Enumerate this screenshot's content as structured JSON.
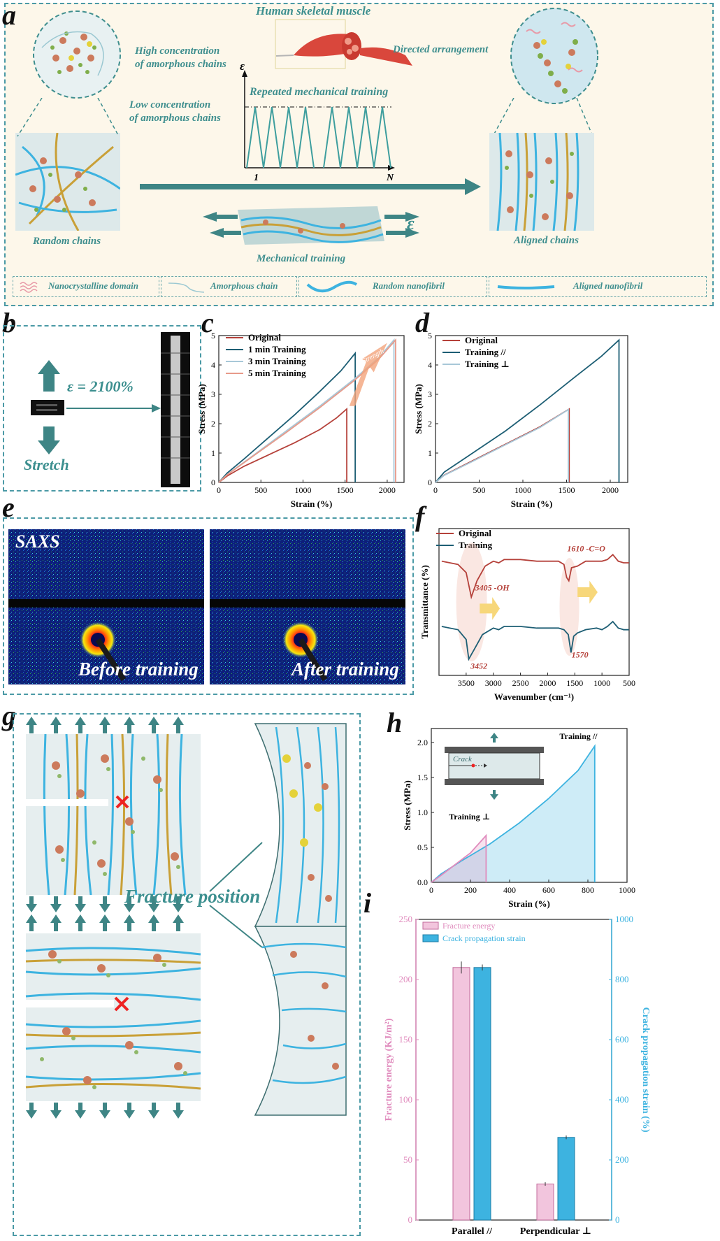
{
  "panel_a": {
    "letter": "a",
    "muscle_title": "Human skeletal muscle",
    "high_conc": [
      "High concentration",
      "of amorphous chains"
    ],
    "low_conc": [
      "Low concentration",
      "of amorphous chains"
    ],
    "directed": "Directed arrangement",
    "repeated": "Repeated mechanical  training",
    "epsilon": "ε",
    "axis_start": "1",
    "axis_end": "N",
    "random_chains": "Random chains",
    "aligned_chains": "Aligned chains",
    "mech_training": "Mechanical training",
    "epsilon_arrow": "ε",
    "legend": [
      "Nanocrystalline domain",
      "Amorphous chain",
      "Random nanofibril",
      "Aligned nanofibril"
    ]
  },
  "panel_b": {
    "letter": "b",
    "strain_label": "ε = 2100%",
    "stretch": "Stretch"
  },
  "panel_c": {
    "letter": "c",
    "strength": "Strength"
  },
  "panel_d": {
    "letter": "d"
  },
  "panel_e": {
    "letter": "e",
    "saxs": "SAXS",
    "before": "Before training",
    "after": "After training"
  },
  "panel_f": {
    "letter": "f",
    "ann_3405": "3405 -OH",
    "ann_1610": "1610 -C=O",
    "ann_3452": "3452",
    "ann_1570": "1570"
  },
  "panel_g": {
    "letter": "g",
    "fracture": "Fracture position"
  },
  "panel_h": {
    "letter": "h",
    "crack": "Crack",
    "train_par": "Training //",
    "train_perp": "Training ⊥"
  },
  "panel_i": {
    "letter": "i"
  },
  "colors": {
    "teal": "#4b9aa6",
    "orig": "#b5413a",
    "train1": "#1d5e74",
    "train3": "#a8c8d8",
    "train5": "#e79a8a",
    "pink": "#e08bbd",
    "cyan": "#3db3e0"
  },
  "chart_data": [
    {
      "id": "c",
      "type": "line",
      "xlabel": "Strain (%)",
      "ylabel": "Stress (MPa)",
      "xlim": [
        0,
        2200
      ],
      "ylim": [
        0,
        5
      ],
      "xticks": [
        0,
        500,
        1000,
        1500,
        2000
      ],
      "yticks": [
        0,
        1,
        2,
        3,
        4,
        5
      ],
      "legend": "top-left",
      "series": [
        {
          "name": "Original",
          "color": "#b5413a",
          "points": [
            [
              0,
              0
            ],
            [
              100,
              0.22
            ],
            [
              300,
              0.55
            ],
            [
              600,
              0.95
            ],
            [
              900,
              1.35
            ],
            [
              1200,
              1.8
            ],
            [
              1400,
              2.2
            ],
            [
              1520,
              2.5
            ],
            [
              1520,
              0
            ]
          ]
        },
        {
          "name": "1 min Training",
          "color": "#1d5e74",
          "points": [
            [
              0,
              0
            ],
            [
              100,
              0.32
            ],
            [
              300,
              0.8
            ],
            [
              600,
              1.55
            ],
            [
              900,
              2.3
            ],
            [
              1200,
              3.1
            ],
            [
              1450,
              3.8
            ],
            [
              1620,
              4.4
            ],
            [
              1620,
              0
            ]
          ]
        },
        {
          "name": "3 min Training",
          "color": "#a8c8d8",
          "points": [
            [
              0,
              0
            ],
            [
              100,
              0.27
            ],
            [
              400,
              0.9
            ],
            [
              800,
              1.75
            ],
            [
              1200,
              2.6
            ],
            [
              1600,
              3.5
            ],
            [
              1900,
              4.25
            ],
            [
              2080,
              4.85
            ],
            [
              2080,
              0
            ]
          ]
        },
        {
          "name": "5 min Training",
          "color": "#e79a8a",
          "points": [
            [
              0,
              0
            ],
            [
              100,
              0.26
            ],
            [
              400,
              0.88
            ],
            [
              800,
              1.7
            ],
            [
              1200,
              2.55
            ],
            [
              1600,
              3.45
            ],
            [
              1900,
              4.2
            ],
            [
              2100,
              4.85
            ],
            [
              2100,
              0
            ]
          ]
        }
      ]
    },
    {
      "id": "d",
      "type": "line",
      "xlabel": "Strain (%)",
      "ylabel": "Stress (MPa)",
      "xlim": [
        0,
        2200
      ],
      "ylim": [
        0,
        5
      ],
      "xticks": [
        0,
        500,
        1000,
        1500,
        2000
      ],
      "yticks": [
        0,
        1,
        2,
        3,
        4,
        5
      ],
      "legend": "top-left",
      "series": [
        {
          "name": "Original",
          "color": "#b5413a",
          "points": [
            [
              0,
              0
            ],
            [
              100,
              0.25
            ],
            [
              400,
              0.7
            ],
            [
              800,
              1.3
            ],
            [
              1200,
              1.9
            ],
            [
              1530,
              2.5
            ],
            [
              1530,
              0
            ]
          ]
        },
        {
          "name": "Training //",
          "color": "#1d5e74",
          "points": [
            [
              0,
              0
            ],
            [
              100,
              0.35
            ],
            [
              400,
              0.95
            ],
            [
              800,
              1.75
            ],
            [
              1200,
              2.65
            ],
            [
              1600,
              3.6
            ],
            [
              1900,
              4.3
            ],
            [
              2100,
              4.85
            ],
            [
              2100,
              0
            ]
          ]
        },
        {
          "name": "Training ⊥",
          "color": "#a8c8d8",
          "points": [
            [
              0,
              0
            ],
            [
              100,
              0.24
            ],
            [
              400,
              0.68
            ],
            [
              800,
              1.28
            ],
            [
              1200,
              1.88
            ],
            [
              1520,
              2.48
            ],
            [
              1520,
              0
            ]
          ]
        }
      ]
    },
    {
      "id": "f",
      "type": "line",
      "xlabel": "Wavenumber (cm⁻¹)",
      "ylabel": "Transmittance (%)",
      "xlim": [
        4000,
        500
      ],
      "reversed_x": true,
      "xticks": [
        3500,
        3000,
        2500,
        2000,
        1500,
        1000,
        500
      ],
      "legend": "top-left",
      "series": [
        {
          "name": "Original",
          "color": "#b5413a",
          "points": [
            [
              3950,
              70
            ],
            [
              3800,
              69
            ],
            [
              3650,
              68
            ],
            [
              3500,
              63
            ],
            [
              3405,
              48
            ],
            [
              3300,
              58
            ],
            [
              3150,
              67
            ],
            [
              3000,
              70
            ],
            [
              2900,
              69
            ],
            [
              2800,
              71
            ],
            [
              2500,
              71
            ],
            [
              2200,
              70
            ],
            [
              2000,
              70
            ],
            [
              1800,
              70
            ],
            [
              1700,
              68
            ],
            [
              1650,
              60
            ],
            [
              1610,
              58
            ],
            [
              1560,
              66
            ],
            [
              1450,
              67
            ],
            [
              1300,
              70
            ],
            [
              1100,
              70
            ],
            [
              1000,
              70
            ],
            [
              900,
              71
            ],
            [
              800,
              74
            ],
            [
              700,
              70
            ],
            [
              600,
              69
            ],
            [
              500,
              69
            ]
          ]
        },
        {
          "name": "Training",
          "color": "#1d5e74",
          "points": [
            [
              3950,
              30
            ],
            [
              3800,
              29
            ],
            [
              3650,
              28
            ],
            [
              3500,
              22
            ],
            [
              3452,
              10
            ],
            [
              3350,
              16
            ],
            [
              3200,
              25
            ],
            [
              3000,
              29
            ],
            [
              2900,
              28
            ],
            [
              2800,
              30
            ],
            [
              2500,
              30
            ],
            [
              2200,
              29
            ],
            [
              2000,
              29
            ],
            [
              1800,
              29
            ],
            [
              1700,
              28
            ],
            [
              1620,
              25
            ],
            [
              1570,
              14
            ],
            [
              1520,
              24
            ],
            [
              1450,
              26
            ],
            [
              1300,
              28
            ],
            [
              1100,
              29
            ],
            [
              1000,
              28
            ],
            [
              900,
              30
            ],
            [
              800,
              33
            ],
            [
              700,
              29
            ],
            [
              600,
              28
            ],
            [
              500,
              28
            ]
          ]
        }
      ]
    },
    {
      "id": "h",
      "type": "area",
      "xlabel": "Strain (%)",
      "ylabel": "Stress (MPa)",
      "xlim": [
        0,
        1000
      ],
      "ylim": [
        0,
        2.2
      ],
      "xticks": [
        0,
        200,
        400,
        600,
        800,
        1000
      ],
      "yticks": [
        0.0,
        0.5,
        1.0,
        1.5,
        2.0
      ],
      "series": [
        {
          "name": "Training //",
          "color": "#3db3e0",
          "points": [
            [
              0,
              0
            ],
            [
              50,
              0.12
            ],
            [
              150,
              0.3
            ],
            [
              300,
              0.55
            ],
            [
              450,
              0.85
            ],
            [
              600,
              1.2
            ],
            [
              750,
              1.6
            ],
            [
              835,
              1.95
            ],
            [
              835,
              0
            ]
          ]
        },
        {
          "name": "Training ⊥",
          "color": "#e08bbd",
          "points": [
            [
              0,
              0
            ],
            [
              50,
              0.1
            ],
            [
              120,
              0.25
            ],
            [
              200,
              0.42
            ],
            [
              280,
              0.67
            ],
            [
              280,
              0
            ]
          ]
        }
      ]
    },
    {
      "id": "i",
      "type": "bar",
      "categories": [
        "Parallel //",
        "Perpendicular ⊥"
      ],
      "ylabel": "Fracture energy (KJ/m²)",
      "y2label": "Crack propagation strain (%)",
      "ylim": [
        0,
        250
      ],
      "y2lim": [
        0,
        1000
      ],
      "yticks": [
        0,
        50,
        100,
        150,
        200,
        250
      ],
      "y2ticks": [
        0,
        200,
        400,
        600,
        800,
        1000
      ],
      "legend": "top-left",
      "series": [
        {
          "name": "Fracture energy",
          "color": "#e08bbd",
          "axis": "left",
          "values": [
            210,
            30
          ],
          "errors": [
            5,
            1.5
          ]
        },
        {
          "name": "Crack propagation strain",
          "color": "#3db3e0",
          "axis": "right",
          "values": [
            840,
            275
          ],
          "errors": [
            10,
            6
          ]
        }
      ]
    }
  ]
}
